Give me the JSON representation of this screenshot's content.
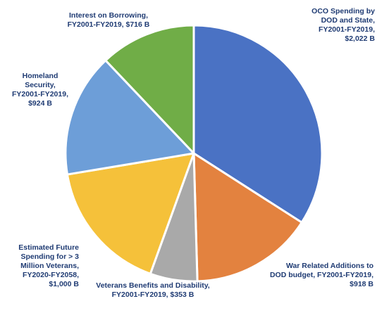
{
  "chart_data": {
    "type": "pie",
    "title": "",
    "unit": "B",
    "slices": [
      {
        "key": "oco",
        "label": "OCO Spending by\nDOD and State,\nFY2001-FY2019,\n$2,022 B",
        "value": 2022,
        "color": "#4a72c4"
      },
      {
        "key": "war",
        "label": "War Related Additions to\nDOD budget, FY2001-FY2019,\n$918 B",
        "value": 918,
        "color": "#e3823f"
      },
      {
        "key": "vet",
        "label": "Veterans Benefits and Disability,\nFY2001-FY2019,  $353 B",
        "value": 353,
        "color": "#a9a9a9"
      },
      {
        "key": "future",
        "label": "Estimated Future\nSpending for > 3\nMillion Veterans,\nFY2020-FY2058,\n$1,000 B",
        "value": 1000,
        "color": "#f5c13a"
      },
      {
        "key": "homeland",
        "label": "Homeland\nSecurity,\nFY2001-FY2019,\n$924 B",
        "value": 924,
        "color": "#6d9ed8"
      },
      {
        "key": "interest",
        "label": "Interest on Borrowing,\nFY2001-FY2019,  $716 B",
        "value": 716,
        "color": "#70ad47"
      }
    ]
  }
}
